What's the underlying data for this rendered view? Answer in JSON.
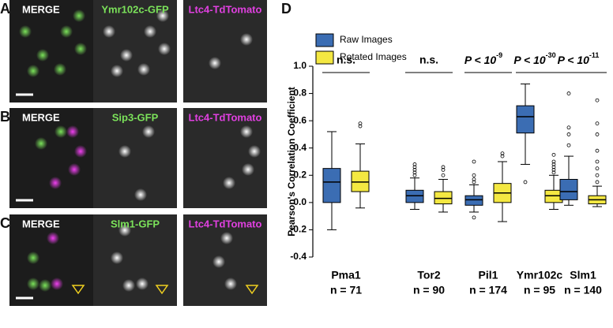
{
  "panels": [
    {
      "letter": "A",
      "labels": [
        "MERGE",
        "Ymr102c-GFP",
        "Ltc4-TdTomato"
      ]
    },
    {
      "letter": "B",
      "labels": [
        "MERGE",
        "Sip3-GFP",
        "Ltc4-TdTomato"
      ]
    },
    {
      "letter": "C",
      "labels": [
        "MERGE",
        "Slm1-GFP",
        "Ltc4-TdTomato"
      ]
    }
  ],
  "chart_data": {
    "type": "box",
    "panel_letter": "D",
    "ylabel": "Pearson's Correlation Coefficient",
    "categories": [
      "Pma1",
      "Tor2",
      "Pil1",
      "Ymr102c",
      "Slm1"
    ],
    "n_labels": [
      "n = 71",
      "n = 90",
      "n = 174",
      "n = 95",
      "n = 140"
    ],
    "significance": [
      {
        "text": "n.s."
      },
      {
        "text": "n.s."
      },
      {
        "text": "P < 10",
        "exponent": "-9"
      },
      {
        "text": "P < 10",
        "exponent": "-30"
      },
      {
        "text": "P < 10",
        "exponent": "-11"
      }
    ],
    "ylim": [
      -0.4,
      1.0
    ],
    "yticks": [
      {
        "value": 1,
        "label": "1.0"
      },
      0.8,
      0.6,
      0.4,
      0.2,
      {
        "value": 0,
        "label": "0.0"
      },
      -0.2,
      -0.4
    ],
    "legend": "top-left",
    "series": [
      {
        "name": "Raw Images",
        "color": "#3b6db3",
        "boxes": [
          {
            "low": -0.2,
            "q1": 0.0,
            "median": 0.15,
            "q3": 0.25,
            "high": 0.52,
            "outliers": []
          },
          {
            "low": -0.05,
            "q1": 0.0,
            "median": 0.05,
            "q3": 0.09,
            "high": 0.18,
            "outliers": [
              0.2,
              0.22,
              0.24,
              0.26,
              0.28
            ]
          },
          {
            "low": -0.07,
            "q1": -0.02,
            "median": 0.02,
            "q3": 0.05,
            "high": 0.13,
            "outliers": [
              0.15,
              0.17,
              0.2,
              0.3,
              -0.11
            ]
          },
          {
            "low": 0.28,
            "q1": 0.51,
            "median": 0.63,
            "q3": 0.71,
            "high": 0.87,
            "outliers": [
              0.15
            ]
          },
          {
            "low": -0.02,
            "q1": 0.02,
            "median": 0.08,
            "q3": 0.17,
            "high": 0.34,
            "outliers": [
              0.42,
              0.5,
              0.55,
              0.8
            ]
          }
        ]
      },
      {
        "name": "Rotated Images",
        "color": "#f4e842",
        "boxes": [
          {
            "low": -0.04,
            "q1": 0.08,
            "median": 0.15,
            "q3": 0.23,
            "high": 0.43,
            "outliers": [
              0.56,
              0.58
            ]
          },
          {
            "low": -0.07,
            "q1": -0.01,
            "median": 0.03,
            "q3": 0.08,
            "high": 0.17,
            "outliers": [
              0.2,
              0.24,
              0.26
            ]
          },
          {
            "low": -0.14,
            "q1": 0.0,
            "median": 0.07,
            "q3": 0.14,
            "high": 0.3,
            "outliers": [
              0.34,
              0.36
            ]
          },
          {
            "low": -0.05,
            "q1": 0.0,
            "median": 0.05,
            "q3": 0.09,
            "high": 0.2,
            "outliers": [
              0.22,
              0.24,
              0.26,
              0.28,
              0.3,
              0.35
            ]
          },
          {
            "low": -0.03,
            "q1": -0.01,
            "median": 0.02,
            "q3": 0.05,
            "high": 0.12,
            "outliers": [
              0.15,
              0.2,
              0.25,
              0.3,
              0.38,
              0.5,
              0.58,
              0.75
            ]
          }
        ]
      }
    ]
  }
}
